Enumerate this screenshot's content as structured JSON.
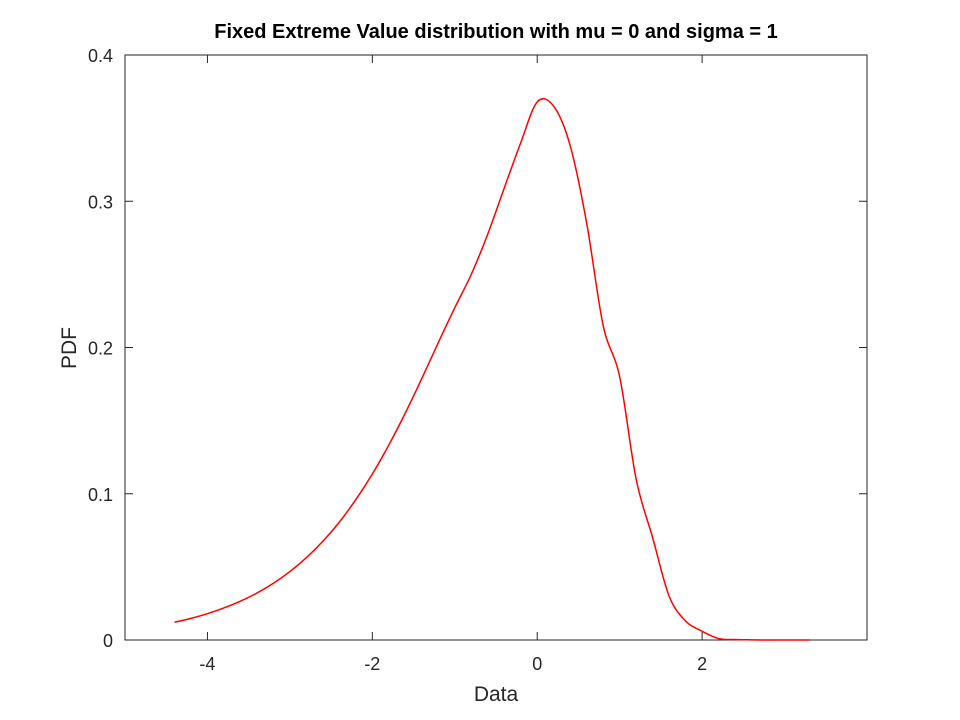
{
  "chart_data": {
    "type": "line",
    "title": "Fixed Extreme Value distribution with mu = 0 and sigma = 1",
    "xlabel": "Data",
    "ylabel": "PDF",
    "xlim": [
      -5,
      4
    ],
    "ylim": [
      0,
      0.4
    ],
    "xticks": [
      -4,
      -2,
      0,
      2
    ],
    "xtick_labels": [
      "-4",
      "-2",
      "0",
      "2"
    ],
    "yticks": [
      0,
      0.1,
      0.2,
      0.3,
      0.4
    ],
    "ytick_labels": [
      "0",
      "0.1",
      "0.2",
      "0.3",
      "0.4"
    ],
    "grid": false,
    "legend": false,
    "series": [
      {
        "color": "#ff0000",
        "x": [
          -4.4,
          -4.2,
          -4.0,
          -3.8,
          -3.6,
          -3.4,
          -3.2,
          -3.0,
          -2.8,
          -2.6,
          -2.4,
          -2.2,
          -2.0,
          -1.8,
          -1.6,
          -1.4,
          -1.2,
          -1.0,
          -0.8,
          -0.6,
          -0.4,
          -0.2,
          0.0,
          0.2,
          0.4,
          0.6,
          0.8,
          1.0,
          1.2,
          1.4,
          1.6,
          1.8,
          2.0,
          2.2,
          2.4,
          2.6,
          2.8,
          3.0,
          3.3
        ],
        "y": [
          0.0121,
          0.0148,
          0.018,
          0.0219,
          0.0265,
          0.0321,
          0.0388,
          0.0468,
          0.0563,
          0.0675,
          0.0806,
          0.096,
          0.1135,
          0.1333,
          0.1552,
          0.1788,
          0.2033,
          0.2272,
          0.25,
          0.2775,
          0.309,
          0.34,
          0.3679,
          0.365,
          0.338,
          0.285,
          0.215,
          0.18,
          0.11,
          0.07,
          0.03,
          0.013,
          0.006,
          0.001,
          0.0003,
          0.0001,
          0.0,
          0.0,
          0.0
        ]
      }
    ]
  }
}
